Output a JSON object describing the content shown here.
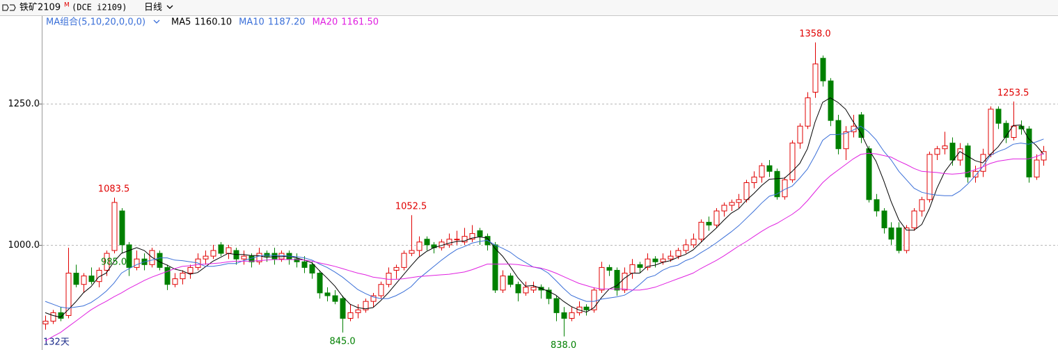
{
  "chart_data": {
    "type": "candlestick",
    "symbol": "铁矿2109",
    "symbol_mark": "M",
    "exchange_code": "(DCE i2109)",
    "period": "日线",
    "indicator": "MA组合(5,10,20,0,0,0)",
    "day_count": "132天",
    "ylim": [
      814,
      1406
    ],
    "yticks": [
      {
        "value": 1000,
        "label": "1000.0"
      },
      {
        "value": 1250,
        "label": "1250.0"
      }
    ],
    "grid": true,
    "up_color": "#e00000",
    "down_color": "#008000",
    "ohlc": [
      [
        860,
        875,
        850,
        865
      ],
      [
        865,
        885,
        860,
        880
      ],
      [
        880,
        890,
        865,
        870
      ],
      [
        875,
        995,
        870,
        950
      ],
      [
        950,
        965,
        925,
        930
      ],
      [
        930,
        950,
        915,
        945
      ],
      [
        945,
        960,
        930,
        935
      ],
      [
        935,
        960,
        925,
        955
      ],
      [
        955,
        990,
        945,
        985
      ],
      [
        990,
        1083.5,
        985,
        1075
      ],
      [
        1060,
        1065,
        985,
        1000
      ],
      [
        1000,
        1005,
        945,
        960
      ],
      [
        960,
        990,
        955,
        975
      ],
      [
        975,
        985,
        955,
        965
      ],
      [
        965,
        995,
        960,
        990
      ],
      [
        985,
        990,
        955,
        960
      ],
      [
        960,
        965,
        920,
        930
      ],
      [
        930,
        950,
        925,
        940
      ],
      [
        940,
        955,
        930,
        950
      ],
      [
        950,
        965,
        940,
        960
      ],
      [
        960,
        985,
        955,
        975
      ],
      [
        975,
        990,
        965,
        980
      ],
      [
        980,
        1000,
        975,
        990
      ],
      [
        1000,
        1005,
        980,
        985
      ],
      [
        985,
        1000,
        975,
        995
      ],
      [
        990,
        995,
        965,
        975
      ],
      [
        975,
        990,
        965,
        980
      ],
      [
        980,
        985,
        960,
        970
      ],
      [
        970,
        995,
        965,
        985
      ],
      [
        985,
        990,
        970,
        980
      ],
      [
        985,
        995,
        965,
        975
      ],
      [
        975,
        990,
        970,
        985
      ],
      [
        985,
        990,
        965,
        975
      ],
      [
        975,
        985,
        960,
        970
      ],
      [
        970,
        980,
        950,
        960
      ],
      [
        965,
        970,
        940,
        950
      ],
      [
        950,
        955,
        905,
        915
      ],
      [
        915,
        925,
        900,
        910
      ],
      [
        910,
        920,
        895,
        900
      ],
      [
        905,
        910,
        845,
        870
      ],
      [
        870,
        895,
        865,
        880
      ],
      [
        880,
        895,
        870,
        885
      ],
      [
        885,
        905,
        880,
        900
      ],
      [
        900,
        915,
        890,
        910
      ],
      [
        910,
        935,
        905,
        930
      ],
      [
        930,
        960,
        925,
        950
      ],
      [
        955,
        965,
        940,
        960
      ],
      [
        960,
        990,
        955,
        985
      ],
      [
        985,
        1052.5,
        980,
        990
      ],
      [
        990,
        1015,
        980,
        1005
      ],
      [
        1010,
        1015,
        990,
        1000
      ],
      [
        1000,
        1005,
        985,
        995
      ],
      [
        995,
        1010,
        990,
        1005
      ],
      [
        1000,
        1020,
        995,
        1010
      ],
      [
        1010,
        1025,
        1000,
        1010
      ],
      [
        1005,
        1030,
        1000,
        1015
      ],
      [
        1010,
        1035,
        1005,
        1020
      ],
      [
        1025,
        1030,
        1000,
        1015
      ],
      [
        1015,
        1020,
        990,
        1000
      ],
      [
        1000,
        1005,
        915,
        920
      ],
      [
        920,
        955,
        915,
        945
      ],
      [
        945,
        950,
        925,
        930
      ],
      [
        930,
        935,
        900,
        915
      ],
      [
        915,
        935,
        910,
        925
      ],
      [
        920,
        935,
        915,
        925
      ],
      [
        925,
        930,
        905,
        920
      ],
      [
        920,
        925,
        895,
        905
      ],
      [
        905,
        910,
        865,
        880
      ],
      [
        880,
        890,
        838,
        870
      ],
      [
        870,
        890,
        865,
        880
      ],
      [
        880,
        900,
        875,
        890
      ],
      [
        890,
        895,
        875,
        885
      ],
      [
        885,
        925,
        880,
        920
      ],
      [
        920,
        970,
        915,
        960
      ],
      [
        960,
        965,
        945,
        955
      ],
      [
        955,
        960,
        910,
        920
      ],
      [
        920,
        960,
        915,
        950
      ],
      [
        950,
        975,
        940,
        965
      ],
      [
        965,
        970,
        950,
        960
      ],
      [
        960,
        985,
        955,
        975
      ],
      [
        975,
        980,
        960,
        970
      ],
      [
        970,
        985,
        965,
        975
      ],
      [
        975,
        990,
        970,
        980
      ],
      [
        980,
        995,
        975,
        990
      ],
      [
        990,
        1010,
        985,
        1000
      ],
      [
        1000,
        1020,
        995,
        1010
      ],
      [
        1010,
        1045,
        1005,
        1040
      ],
      [
        1040,
        1050,
        1025,
        1035
      ],
      [
        1035,
        1065,
        1030,
        1060
      ],
      [
        1060,
        1075,
        1050,
        1070
      ],
      [
        1070,
        1080,
        1060,
        1075
      ],
      [
        1075,
        1090,
        1065,
        1080
      ],
      [
        1080,
        1115,
        1075,
        1110
      ],
      [
        1110,
        1130,
        1100,
        1120
      ],
      [
        1120,
        1145,
        1110,
        1140
      ],
      [
        1140,
        1150,
        1120,
        1130
      ],
      [
        1130,
        1135,
        1080,
        1085
      ],
      [
        1085,
        1120,
        1080,
        1115
      ],
      [
        1115,
        1185,
        1110,
        1180
      ],
      [
        1180,
        1215,
        1170,
        1210
      ],
      [
        1210,
        1270,
        1205,
        1260
      ],
      [
        1270,
        1358,
        1260,
        1320
      ],
      [
        1330,
        1335,
        1280,
        1290
      ],
      [
        1290,
        1295,
        1210,
        1220
      ],
      [
        1220,
        1230,
        1160,
        1170
      ],
      [
        1170,
        1210,
        1150,
        1200
      ],
      [
        1200,
        1230,
        1190,
        1210
      ],
      [
        1230,
        1235,
        1180,
        1190
      ],
      [
        1170,
        1175,
        1075,
        1080
      ],
      [
        1080,
        1090,
        1050,
        1060
      ],
      [
        1060,
        1065,
        1020,
        1030
      ],
      [
        1030,
        1040,
        1000,
        1010
      ],
      [
        1030,
        1040,
        985,
        990
      ],
      [
        990,
        1035,
        985,
        1030
      ],
      [
        1030,
        1065,
        1025,
        1060
      ],
      [
        1060,
        1085,
        1050,
        1080
      ],
      [
        1080,
        1165,
        1075,
        1160
      ],
      [
        1160,
        1175,
        1150,
        1170
      ],
      [
        1170,
        1200,
        1160,
        1175
      ],
      [
        1180,
        1190,
        1140,
        1150
      ],
      [
        1150,
        1180,
        1140,
        1170
      ],
      [
        1175,
        1180,
        1110,
        1120
      ],
      [
        1120,
        1140,
        1110,
        1130
      ],
      [
        1130,
        1170,
        1120,
        1160
      ],
      [
        1160,
        1245,
        1155,
        1240
      ],
      [
        1240,
        1245,
        1205,
        1215
      ],
      [
        1215,
        1220,
        1180,
        1190
      ],
      [
        1190,
        1253.5,
        1185,
        1210
      ],
      [
        1210,
        1220,
        1195,
        1205
      ],
      [
        1205,
        1210,
        1110,
        1120
      ],
      [
        1120,
        1160,
        1115,
        1150
      ],
      [
        1150,
        1175,
        1140,
        1165
      ]
    ],
    "series": [
      {
        "name": "MA5",
        "color": "#000000",
        "latest": "1160.10",
        "values": [
          880,
          875,
          872,
          885,
          899,
          915,
          926,
          943,
          950,
          970,
          985,
          990,
          995,
          990,
          978,
          970,
          964,
          957,
          954,
          948,
          951,
          961,
          971,
          978,
          985,
          983,
          983,
          981,
          981,
          978,
          979,
          979,
          980,
          977,
          973,
          968,
          954,
          941,
          927,
          909,
          895,
          889,
          887,
          889,
          901,
          915,
          931,
          947,
          963,
          978,
          988,
          995,
          999,
          1003,
          1006,
          1007,
          1012,
          1014,
          1012,
          994,
          980,
          962,
          942,
          927,
          928,
          923,
          918,
          911,
          900,
          891,
          885,
          881,
          889,
          907,
          922,
          928,
          941,
          950,
          950,
          962,
          964,
          969,
          972,
          978,
          983,
          991,
          1004,
          1017,
          1029,
          1043,
          1056,
          1064,
          1079,
          1091,
          1105,
          1116,
          1117,
          1118,
          1130,
          1144,
          1170,
          1217,
          1252,
          1260,
          1252,
          1240,
          1218,
          1198,
          1170,
          1148,
          1114,
          1076,
          1044,
          1026,
          1026,
          1036,
          1064,
          1100,
          1129,
          1147,
          1165,
          1157,
          1149,
          1145,
          1160,
          1173,
          1191,
          1211,
          1212,
          1188,
          1176,
          1160.1
        ]
      },
      {
        "name": "MA10",
        "color": "#3a6fd8",
        "latest": "1187.20",
        "values": [
          900,
          895,
          890,
          888,
          890,
          892,
          898,
          907,
          918,
          932,
          950,
          958,
          965,
          970,
          973,
          977,
          977,
          973,
          972,
          970,
          968,
          962,
          962,
          964,
          967,
          967,
          972,
          976,
          980,
          982,
          981,
          981,
          980,
          979,
          977,
          973,
          966,
          960,
          952,
          943,
          932,
          921,
          914,
          908,
          905,
          905,
          910,
          917,
          926,
          940,
          951,
          962,
          973,
          983,
          992,
          997,
          1003,
          1006,
          1008,
          1000,
          994,
          987,
          977,
          969,
          961,
          958,
          950,
          937,
          923,
          911,
          905,
          900,
          900,
          904,
          906,
          908,
          911,
          919,
          930,
          942,
          946,
          955,
          961,
          964,
          972,
          977,
          986,
          994,
          1003,
          1013,
          1023,
          1034,
          1047,
          1060,
          1074,
          1086,
          1090,
          1098,
          1104,
          1118,
          1134,
          1158,
          1185,
          1195,
          1195,
          1197,
          1203,
          1210,
          1200,
          1186,
          1166,
          1150,
          1130,
          1115,
          1100,
          1093,
          1090,
          1088,
          1087,
          1087,
          1095,
          1107,
          1122,
          1138,
          1158,
          1165,
          1170,
          1178,
          1180,
          1178,
          1182,
          1187.2
        ]
      },
      {
        "name": "MA20",
        "color": "#e020e0",
        "latest": "1161.50",
        "values": [
          830,
          838,
          845,
          855,
          865,
          875,
          885,
          893,
          900,
          908,
          915,
          923,
          930,
          937,
          943,
          948,
          953,
          958,
          962,
          963,
          965,
          966,
          967,
          968,
          970,
          971,
          971,
          971,
          972,
          973,
          974,
          974,
          974,
          974,
          973,
          971,
          968,
          965,
          962,
          958,
          954,
          950,
          947,
          943,
          941,
          939,
          939,
          940,
          942,
          944,
          945,
          946,
          947,
          948,
          950,
          952,
          956,
          961,
          966,
          966,
          966,
          966,
          965,
          963,
          961,
          959,
          955,
          950,
          944,
          938,
          932,
          928,
          924,
          922,
          922,
          922,
          922,
          920,
          920,
          922,
          925,
          930,
          935,
          940,
          945,
          950,
          958,
          965,
          972,
          980,
          989,
          998,
          1006,
          1015,
          1024,
          1032,
          1038,
          1046,
          1054,
          1064,
          1078,
          1094,
          1110,
          1122,
          1132,
          1142,
          1152,
          1160,
          1162,
          1161,
          1158,
          1155,
          1148,
          1142,
          1135,
          1130,
          1129,
          1128,
          1126,
          1125,
          1126,
          1128,
          1133,
          1138,
          1144,
          1148,
          1150,
          1152,
          1152,
          1152,
          1156,
          1161.5
        ]
      }
    ],
    "annotations": [
      {
        "value": 1083.5,
        "label": "1083.5",
        "kind": "max"
      },
      {
        "value": 845,
        "label": "845.0",
        "kind": "min"
      },
      {
        "value": 1052.5,
        "label": "1052.5",
        "kind": "max"
      },
      {
        "value": 838,
        "label": "838.0",
        "kind": "min"
      },
      {
        "value": 1358,
        "label": "1358.0",
        "kind": "max"
      },
      {
        "value": 985,
        "label": "985.0",
        "kind": "min"
      },
      {
        "value": 1253.5,
        "label": "1253.5",
        "kind": "max"
      }
    ]
  }
}
